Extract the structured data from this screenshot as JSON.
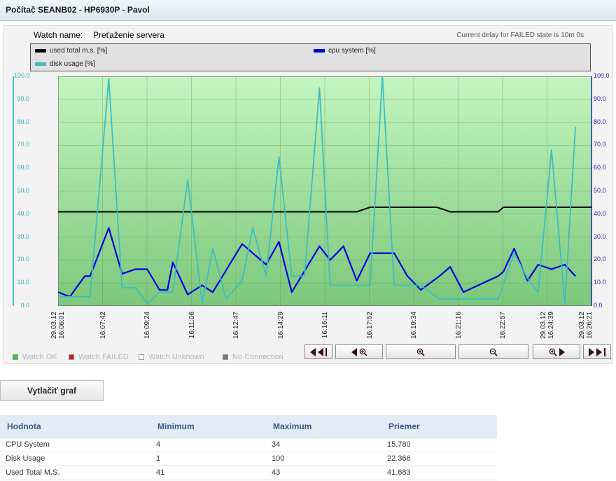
{
  "window": {
    "title": "Počítač SEANB02 - HP6930P - Pavol"
  },
  "watch": {
    "name_label": "Watch name:",
    "name_value": "Preťaženie servera",
    "delay_text": "Current delay for FAILED state is 10m 0s"
  },
  "legend": {
    "items": [
      {
        "label": "used total m.s. [%]",
        "color": "#000000"
      },
      {
        "label": "cpu system [%]",
        "color": "#0000dd"
      },
      {
        "label": "disk usage [%]",
        "color": "#3dbdc2"
      }
    ]
  },
  "y_ticks": [
    "100.0",
    "90.0",
    "80.0",
    "70.0",
    "60.0",
    "50.0",
    "40.0",
    "30.0",
    "20.0",
    "10.0",
    "0.0"
  ],
  "x_labels": [
    [
      "29.03.12",
      "16:06:01"
    ],
    [
      "16:07:42"
    ],
    [
      "16:09:24"
    ],
    [
      "16:11:06"
    ],
    [
      "16:12:47"
    ],
    [
      "16:14:29"
    ],
    [
      "16:16:11"
    ],
    [
      "16:17:52"
    ],
    [
      "16:19:34"
    ],
    [
      "16:21:16"
    ],
    [
      "16:22:57"
    ],
    [
      "29.03.12",
      "16:24:39"
    ],
    [
      "29.03.12",
      "16:26:21"
    ]
  ],
  "status_legend": [
    {
      "label": "Watch OK",
      "color": "#2ecc2e"
    },
    {
      "label": "Watch FAILED",
      "color": "#dd1111"
    },
    {
      "label": "Watch Unknown",
      "color": "#ffffff"
    },
    {
      "label": "No Connection",
      "color": "#777777"
    }
  ],
  "nav_buttons": [
    {
      "name": "nav-first-button",
      "icons": [
        "tri-l",
        "tri-l",
        "bar"
      ]
    },
    {
      "name": "nav-back-zoom-button",
      "icons": [
        "tri-l",
        "zoom-in"
      ]
    },
    {
      "name": "zoom-in-button",
      "icons": [
        "zoom-in"
      ]
    },
    {
      "name": "zoom-out-button",
      "icons": [
        "zoom-out"
      ]
    },
    {
      "name": "nav-forward-zoom-button",
      "icons": [
        "zoom-in",
        "tri-r"
      ]
    },
    {
      "name": "nav-last-button",
      "icons": [
        "tri-r",
        "tri-r",
        "bar"
      ]
    }
  ],
  "print_button": "Vytlačiť graf",
  "stats_table": {
    "headers": [
      "Hodnota",
      "Minimum",
      "Maximum",
      "Priemer"
    ],
    "rows": [
      [
        "CPU System",
        "4",
        "34",
        "15.780"
      ],
      [
        "Disk Usage",
        "1",
        "100",
        "22.366"
      ],
      [
        "Used Total M.S.",
        "41",
        "43",
        "41.683"
      ]
    ]
  },
  "chart_data": {
    "type": "line",
    "ylim": [
      0,
      100
    ],
    "y_ticks": [
      0,
      10,
      20,
      30,
      40,
      50,
      60,
      70,
      80,
      90,
      100
    ],
    "x_range_labels": [
      "16:06:01",
      "16:26:21"
    ],
    "background": {
      "top_color": "#c4f5bf",
      "bottom_color": "#7cc87c"
    },
    "series": [
      {
        "name": "used total m.s. [%]",
        "color": "#000000",
        "points": [
          [
            0,
            41
          ],
          [
            0.56,
            41
          ],
          [
            0.585,
            43
          ],
          [
            0.71,
            43
          ],
          [
            0.735,
            41
          ],
          [
            0.825,
            41
          ],
          [
            0.835,
            43
          ],
          [
            1.0,
            43
          ]
        ]
      },
      {
        "name": "cpu system [%]",
        "color": "#0000dd",
        "points": [
          [
            0,
            6
          ],
          [
            0.022,
            4
          ],
          [
            0.05,
            13
          ],
          [
            0.06,
            13
          ],
          [
            0.095,
            34
          ],
          [
            0.12,
            14
          ],
          [
            0.145,
            16
          ],
          [
            0.167,
            16
          ],
          [
            0.19,
            7
          ],
          [
            0.205,
            7
          ],
          [
            0.215,
            19
          ],
          [
            0.243,
            5
          ],
          [
            0.27,
            9
          ],
          [
            0.29,
            6
          ],
          [
            0.345,
            27
          ],
          [
            0.39,
            18
          ],
          [
            0.414,
            28
          ],
          [
            0.438,
            6
          ],
          [
            0.49,
            26
          ],
          [
            0.51,
            20
          ],
          [
            0.535,
            26
          ],
          [
            0.56,
            11
          ],
          [
            0.585,
            23
          ],
          [
            0.63,
            23
          ],
          [
            0.655,
            13
          ],
          [
            0.68,
            7
          ],
          [
            0.715,
            13
          ],
          [
            0.735,
            17
          ],
          [
            0.76,
            6
          ],
          [
            0.825,
            13
          ],
          [
            0.835,
            15
          ],
          [
            0.855,
            25
          ],
          [
            0.88,
            11
          ],
          [
            0.9,
            18
          ],
          [
            0.925,
            16
          ],
          [
            0.95,
            18
          ],
          [
            0.97,
            13
          ]
        ]
      },
      {
        "name": "disk usage [%]",
        "color": "#3dbdc2",
        "points": [
          [
            0,
            4
          ],
          [
            0.06,
            4
          ],
          [
            0.095,
            99
          ],
          [
            0.12,
            8
          ],
          [
            0.145,
            8
          ],
          [
            0.167,
            1
          ],
          [
            0.19,
            6
          ],
          [
            0.215,
            6
          ],
          [
            0.243,
            55
          ],
          [
            0.27,
            1
          ],
          [
            0.29,
            25
          ],
          [
            0.315,
            3
          ],
          [
            0.345,
            11
          ],
          [
            0.365,
            34
          ],
          [
            0.39,
            13
          ],
          [
            0.414,
            65
          ],
          [
            0.438,
            13
          ],
          [
            0.462,
            13
          ],
          [
            0.49,
            95
          ],
          [
            0.51,
            9
          ],
          [
            0.56,
            9
          ],
          [
            0.585,
            9
          ],
          [
            0.608,
            100
          ],
          [
            0.63,
            9
          ],
          [
            0.68,
            9
          ],
          [
            0.715,
            3
          ],
          [
            0.76,
            3
          ],
          [
            0.825,
            3
          ],
          [
            0.855,
            23
          ],
          [
            0.88,
            12
          ],
          [
            0.9,
            6
          ],
          [
            0.925,
            68
          ],
          [
            0.95,
            1
          ],
          [
            0.97,
            78
          ]
        ]
      }
    ]
  }
}
